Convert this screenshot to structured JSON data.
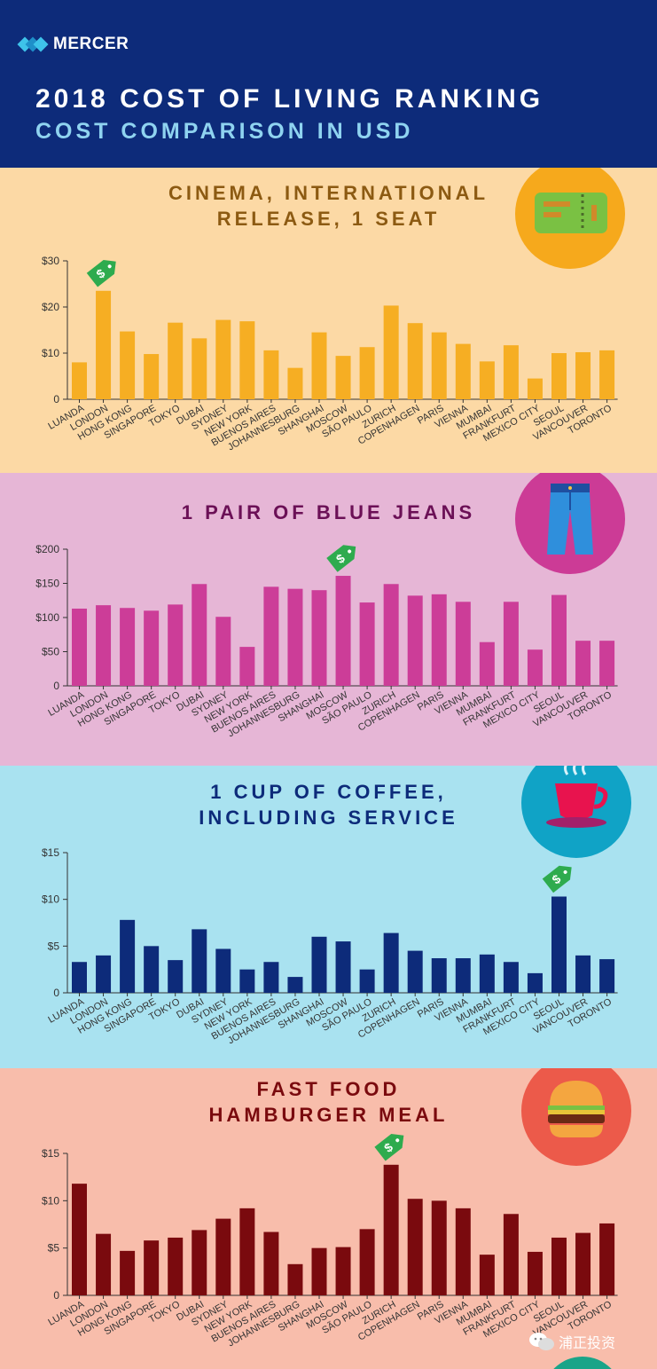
{
  "header": {
    "brand": "MERCER",
    "title": "2018 COST OF LIVING RANKING",
    "subtitle": "COST COMPARISON IN USD"
  },
  "watermark": {
    "text": "浦正投资",
    "icon": "wechat-icon"
  },
  "colors": {
    "header_bg": "#0d2b7a",
    "cinema_bg": "#fcd9a5",
    "cinema_bar": "#f6ae23",
    "cinema_title": "#8c5a12",
    "cinema_circle": "#f6a91c",
    "jeans_bg": "#e6b6d6",
    "jeans_bar": "#cc3d98",
    "jeans_title": "#6b1056",
    "jeans_circle": "#cc3b96",
    "coffee_bg": "#a9e2f0",
    "coffee_bar": "#0d2b7a",
    "coffee_title": "#0d2b7a",
    "coffee_circle": "#10a3c6",
    "burger_bg": "#f8bdab",
    "burger_bar": "#7a0a0e",
    "burger_title": "#7a0a0e",
    "burger_circle": "#ec5a4a",
    "tag": "#2eab4e"
  },
  "chart_data": [
    {
      "id": "cinema",
      "type": "bar",
      "title_lines": [
        "CINEMA, INTERNATIONAL",
        "RELEASE, 1 SEAT"
      ],
      "icon": "ticket-icon",
      "categories": [
        "LUANDA",
        "LONDON",
        "HONG KONG",
        "SINGAPORE",
        "TOKYO",
        "DUBAI",
        "SYDNEY",
        "NEW YORK",
        "BUENOS AIRES",
        "JOHANNESBURG",
        "SHANGHAI",
        "MOSCOW",
        "SÃO PAULO",
        "ZURICH",
        "COPENHAGEN",
        "PARIS",
        "VIENNA",
        "MUMBAI",
        "FRANKFURT",
        "MEXICO CITY",
        "SEOUL",
        "VANCOUVER",
        "TORONTO"
      ],
      "values": [
        8,
        23.5,
        14.7,
        9.8,
        16.6,
        13.2,
        17.2,
        16.9,
        10.6,
        6.8,
        14.5,
        9.4,
        11.3,
        20.3,
        16.5,
        14.5,
        12,
        8.2,
        11.7,
        4.5,
        10,
        10.2,
        10.6
      ],
      "ylim": [
        0,
        30
      ],
      "yticks": [
        "0",
        "$10",
        "$20",
        "$30"
      ],
      "highlight_index": 1,
      "highlight_label": "$"
    },
    {
      "id": "jeans",
      "type": "bar",
      "title_lines": [
        "1 PAIR OF BLUE JEANS"
      ],
      "icon": "jeans-icon",
      "categories": [
        "LUANDA",
        "LONDON",
        "HONG KONG",
        "SINGAPORE",
        "TOKYO",
        "DUBAI",
        "SYDNEY",
        "NEW YORK",
        "BUENOS AIRES",
        "JOHANNESBURG",
        "SHANGHAI",
        "MOSCOW",
        "SÃO PAULO",
        "ZURICH",
        "COPENHAGEN",
        "PARIS",
        "VIENNA",
        "MUMBAI",
        "FRANKFURT",
        "MEXICO CITY",
        "SEOUL",
        "VANCOUVER",
        "TORONTO"
      ],
      "values": [
        113,
        118,
        114,
        110,
        119,
        149,
        101,
        57,
        145,
        142,
        140,
        161,
        122,
        149,
        132,
        134,
        123,
        64,
        123,
        53,
        133,
        66,
        66
      ],
      "ylim": [
        0,
        200
      ],
      "yticks": [
        "0",
        "$50",
        "$100",
        "$150",
        "$200"
      ],
      "highlight_index": 11,
      "highlight_label": "$"
    },
    {
      "id": "coffee",
      "type": "bar",
      "title_lines": [
        "1 CUP OF COFFEE,",
        "INCLUDING SERVICE"
      ],
      "icon": "coffee-cup-icon",
      "categories": [
        "LUANDA",
        "LONDON",
        "HONG KONG",
        "SINGAPORE",
        "TOKYO",
        "DUBAI",
        "SYDNEY",
        "NEW YORK",
        "BUENOS AIRES",
        "JOHANNESBURG",
        "SHANGHAI",
        "MOSCOW",
        "SÃO PAULO",
        "ZURICH",
        "COPENHAGEN",
        "PARIS",
        "VIENNA",
        "MUMBAI",
        "FRANKFURT",
        "MEXICO CITY",
        "SEOUL",
        "VANCOUVER",
        "TORONTO"
      ],
      "values": [
        3.3,
        4,
        7.8,
        5,
        3.5,
        6.8,
        4.7,
        2.5,
        3.3,
        1.7,
        6,
        5.5,
        2.5,
        6.4,
        4.5,
        3.7,
        3.7,
        4.1,
        3.3,
        2.1,
        10.3,
        4,
        3.6
      ],
      "ylim": [
        0,
        15
      ],
      "yticks": [
        "0",
        "$5",
        "$10",
        "$15"
      ],
      "highlight_index": 20,
      "highlight_label": "$"
    },
    {
      "id": "burger",
      "type": "bar",
      "title_lines": [
        "FAST FOOD",
        "HAMBURGER MEAL"
      ],
      "icon": "hamburger-icon",
      "categories": [
        "LUANDA",
        "LONDON",
        "HONG KONG",
        "SINGAPORE",
        "TOKYO",
        "DUBAI",
        "SYDNEY",
        "NEW YORK",
        "BUENOS AIRES",
        "JOHANNESBURG",
        "SHANGHAI",
        "MOSCOW",
        "SÃO PAULO",
        "ZURICH",
        "COPENHAGEN",
        "PARIS",
        "VIENNA",
        "MUMBAI",
        "FRANKFURT",
        "MEXICO CITY",
        "SEOUL",
        "VANCOUVER",
        "TORONTO"
      ],
      "values": [
        11.8,
        6.5,
        4.7,
        5.8,
        6.1,
        6.9,
        8.1,
        9.2,
        6.7,
        3.3,
        5,
        5.1,
        7,
        13.8,
        10.2,
        10,
        9.2,
        4.3,
        8.6,
        4.6,
        6.1,
        6.6,
        7.6
      ],
      "ylim": [
        0,
        15
      ],
      "yticks": [
        "0",
        "$5",
        "$10",
        "$15"
      ],
      "highlight_index": 13,
      "highlight_label": "$"
    }
  ]
}
